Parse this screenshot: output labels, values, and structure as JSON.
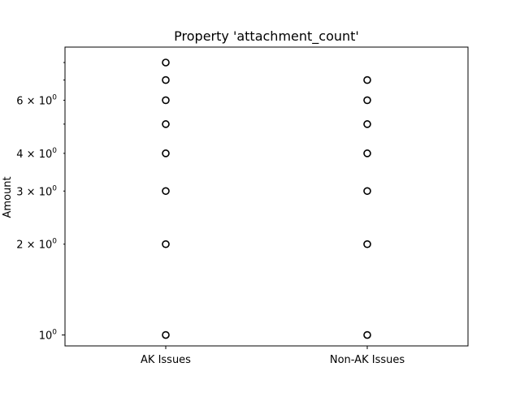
{
  "chart_data": {
    "type": "scatter",
    "title": "Property 'attachment_count'",
    "xlabel": "",
    "ylabel": "Amount",
    "yscale": "log",
    "ylim": [
      0.92,
      9.0
    ],
    "categories": [
      "AK Issues",
      "Non-AK Issues"
    ],
    "y_major_ticks": [
      {
        "value": 1,
        "base": "10",
        "exp": "0"
      }
    ],
    "y_minor_ticks": [
      {
        "value": 2,
        "mantissa": "2",
        "base": "10",
        "exp": "0"
      },
      {
        "value": 3,
        "mantissa": "3",
        "base": "10",
        "exp": "0"
      },
      {
        "value": 4,
        "mantissa": "4",
        "base": "10",
        "exp": "0"
      },
      {
        "value": 5,
        "mantissa": "",
        "base": "",
        "exp": ""
      },
      {
        "value": 6,
        "mantissa": "6",
        "base": "10",
        "exp": "0"
      },
      {
        "value": 7,
        "mantissa": "",
        "base": "",
        "exp": ""
      },
      {
        "value": 8,
        "mantissa": "",
        "base": "",
        "exp": ""
      }
    ],
    "series": [
      {
        "category": "AK Issues",
        "values": [
          1,
          2,
          3,
          4,
          5,
          6,
          7,
          8
        ]
      },
      {
        "category": "Non-AK Issues",
        "values": [
          1,
          2,
          3,
          4,
          5,
          6,
          7
        ]
      }
    ],
    "marker": {
      "shape": "hollow-circle",
      "color": "#000000"
    },
    "grid": false,
    "legend": "none"
  }
}
